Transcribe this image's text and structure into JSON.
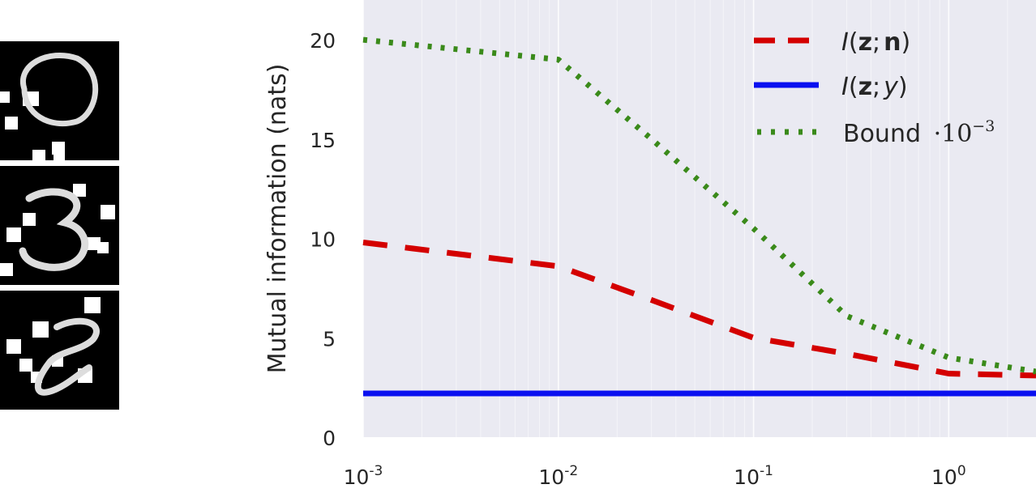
{
  "chart_data": {
    "type": "line",
    "title": "",
    "xlabel": "",
    "ylabel": "Mutual information (nats)",
    "xscale": "log",
    "xlim": [
      0.001,
      2.8
    ],
    "ylim": [
      0,
      22
    ],
    "grid": true,
    "legend_position": "top-right",
    "x_ticks": [
      {
        "value": 0.001,
        "base": "10",
        "exp": "-3"
      },
      {
        "value": 0.01,
        "base": "10",
        "exp": "-2"
      },
      {
        "value": 0.1,
        "base": "10",
        "exp": "-1"
      },
      {
        "value": 1,
        "base": "10",
        "exp": "0"
      }
    ],
    "y_ticks": [
      0,
      5,
      10,
      15,
      20
    ],
    "series": [
      {
        "name": "I(z;n)",
        "style": "dashed",
        "color": "#d40000",
        "x": [
          0.001,
          0.01,
          0.03,
          0.1,
          0.3,
          1,
          2.8
        ],
        "y": [
          9.8,
          8.6,
          6.9,
          5.0,
          4.2,
          3.2,
          3.1
        ]
      },
      {
        "name": "I(z;y)",
        "style": "solid",
        "color": "#0a10f0",
        "x": [
          0.001,
          0.01,
          0.1,
          1,
          2.8
        ],
        "y": [
          2.2,
          2.2,
          2.2,
          2.2,
          2.2
        ]
      },
      {
        "name": "Bound ·10^-3",
        "style": "dotted",
        "color": "#3a8a1a",
        "x": [
          0.001,
          0.01,
          0.03,
          0.1,
          0.3,
          1,
          2.8
        ],
        "y": [
          20.0,
          19.0,
          15.0,
          10.5,
          6.1,
          4.0,
          3.3
        ]
      }
    ],
    "legend": [
      {
        "italic": "I",
        "open": "(",
        "bold1": "z",
        "sep": ";",
        "bold2": "n",
        "ital2": "",
        "close": ")"
      },
      {
        "italic": "I",
        "open": "(",
        "bold1": "z",
        "sep": ";",
        "bold2": "",
        "ital2": "y",
        "close": ")"
      },
      {
        "text": "Bound",
        "dot": "·",
        "base": "10",
        "exp": "−3"
      }
    ]
  }
}
